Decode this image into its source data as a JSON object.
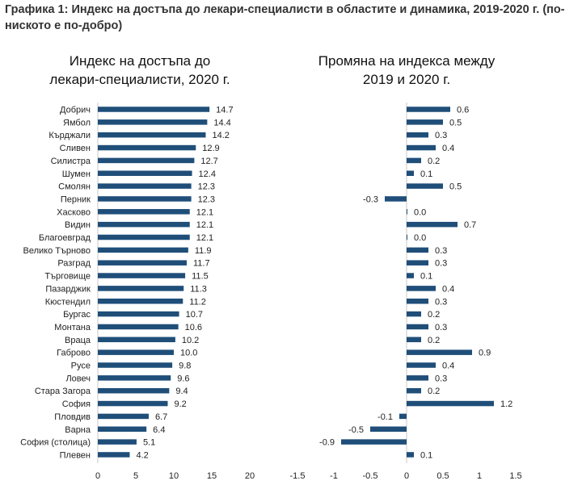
{
  "heading": "Графика 1: Индекс на достъпа до лекари-специалисти в областите и динамика, 2019-2020 г. (по-ниското е по-добро)",
  "colors": {
    "bar": "#1f4e79",
    "axis": "#c8c8c8"
  },
  "chart_data": [
    {
      "type": "bar",
      "orientation": "horizontal",
      "title_lines": [
        "Индекс на достъпа до",
        "лекари-специалисти, 2020 г."
      ],
      "categories": [
        "Добрич",
        "Ямбол",
        "Кърджали",
        "Сливен",
        "Силистра",
        "Шумен",
        "Смолян",
        "Перник",
        "Хасково",
        "Видин",
        "Благоевград",
        "Велико Търново",
        "Разград",
        "Търговище",
        "Пазарджик",
        "Кюстендил",
        "Бургас",
        "Монтана",
        "Враца",
        "Габрово",
        "Русе",
        "Ловеч",
        "Стара Загора",
        "София",
        "Пловдив",
        "Варна",
        "София (столица)",
        "Плевен"
      ],
      "values": [
        14.7,
        14.4,
        14.2,
        12.9,
        12.7,
        12.4,
        12.3,
        12.3,
        12.1,
        12.1,
        12.1,
        11.9,
        11.7,
        11.5,
        11.3,
        11.2,
        10.7,
        10.6,
        10.2,
        10.0,
        9.8,
        9.6,
        9.4,
        9.2,
        6.7,
        6.4,
        5.1,
        4.2
      ],
      "labels": [
        "14.7",
        "14.4",
        "14.2",
        "12.9",
        "12.7",
        "12.4",
        "12.3",
        "12.3",
        "12.1",
        "12.1",
        "12.1",
        "11.9",
        "11.7",
        "11.5",
        "11.3",
        "11.2",
        "10.7",
        "10.6",
        "10.2",
        "10.0",
        "9.8",
        "9.6",
        "9.4",
        "9.2",
        "6.7",
        "6.4",
        "5.1",
        "4.2"
      ],
      "xlim": [
        0,
        20
      ],
      "ticks": [
        "0",
        "5",
        "10",
        "15",
        "20"
      ]
    },
    {
      "type": "bar",
      "orientation": "horizontal",
      "title_lines": [
        "Промяна на индекса между",
        "2019 и 2020 г."
      ],
      "values": [
        0.6,
        0.5,
        0.3,
        0.4,
        0.2,
        0.1,
        0.5,
        -0.3,
        0.0,
        0.7,
        0.0,
        0.3,
        0.3,
        0.1,
        0.4,
        0.3,
        0.2,
        0.3,
        0.2,
        0.9,
        0.4,
        0.3,
        0.2,
        1.2,
        -0.1,
        -0.5,
        -0.9,
        0.1
      ],
      "labels": [
        "0.6",
        "0.5",
        "0.3",
        "0.4",
        "0.2",
        "0.1",
        "0.5",
        "-0.3",
        "0.0",
        "0.7",
        "0.0",
        "0.3",
        "0.3",
        "0.1",
        "0.4",
        "0.3",
        "0.2",
        "0.3",
        "0.2",
        "0.9",
        "0.4",
        "0.3",
        "0.2",
        "1.2",
        "-0.1",
        "-0.5",
        "-0.9",
        "0.1"
      ],
      "xlim": [
        -1.5,
        1.5
      ],
      "ticks": [
        "-1.5",
        "-1",
        "-0.5",
        "0",
        "0.5",
        "1",
        "1.5"
      ]
    }
  ]
}
